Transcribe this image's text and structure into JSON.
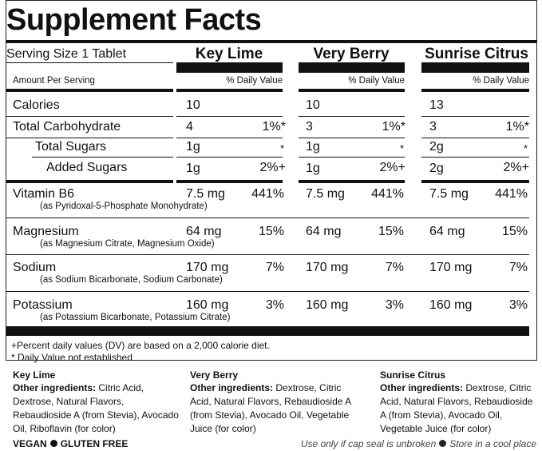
{
  "title": "Supplement Facts",
  "serving_size": "Serving Size 1 Tablet",
  "amount_per_serving": "Amount Per Serving",
  "daily_value_header": "% Daily Value",
  "columns": [
    "Key Lime",
    "Very Berry",
    "Sunrise Citrus"
  ],
  "rows": [
    {
      "name": "Calories",
      "sub": "",
      "values": [
        [
          "10",
          ""
        ],
        [
          "10",
          ""
        ],
        [
          "13",
          ""
        ]
      ]
    },
    {
      "name": "Total Carbohydrate",
      "sub": "",
      "values": [
        [
          "4",
          "1%*"
        ],
        [
          "3",
          "1%*"
        ],
        [
          "3",
          "1%*"
        ]
      ]
    },
    {
      "name": "Total Sugars",
      "sub": "",
      "values": [
        [
          "1g",
          "*"
        ],
        [
          "1g",
          "*"
        ],
        [
          "2g",
          "*"
        ]
      ]
    },
    {
      "name": "Added Sugars",
      "sub": "",
      "values": [
        [
          "1g",
          "2%+"
        ],
        [
          "1g",
          "2%+"
        ],
        [
          "2g",
          "2%+"
        ]
      ]
    },
    {
      "name": "Vitamin B6",
      "sub": "(as Pyridoxal-5-Phosphate Monohydrate)",
      "values": [
        [
          "7.5 mg",
          "441%"
        ],
        [
          "7.5 mg",
          "441%"
        ],
        [
          "7.5 mg",
          "441%"
        ]
      ]
    },
    {
      "name": "Magnesium",
      "sub": "(as Magnesium Citrate, Magnesium Oxide)",
      "values": [
        [
          "64 mg",
          "15%"
        ],
        [
          "64 mg",
          "15%"
        ],
        [
          "64 mg",
          "15%"
        ]
      ]
    },
    {
      "name": "Sodium",
      "sub": "(as Sodium Bicarbonate, Sodium Carbonate)",
      "values": [
        [
          "170 mg",
          "7%"
        ],
        [
          "170 mg",
          "7%"
        ],
        [
          "170 mg",
          "7%"
        ]
      ]
    },
    {
      "name": "Potassium",
      "sub": "(as Potassium Bicarbonate, Potassium Citrate)",
      "values": [
        [
          "160 mg",
          "3%"
        ],
        [
          "160 mg",
          "3%"
        ],
        [
          "160 mg",
          "3%"
        ]
      ]
    }
  ],
  "footnotes": [
    "+Percent daily values (DV) are based on a 2,000 calorie diet.",
    "* Daily Value not established"
  ],
  "ingredients": [
    {
      "flavor": "Key Lime",
      "label": "Other ingredients:",
      "text": "Citric Acid, Dextrose, Natural Flavors, Rebaudioside A (from Stevia), Avocado Oil, Riboflavin (for color)"
    },
    {
      "flavor": "Very Berry",
      "label": "Other ingredients:",
      "text": "Dextrose, Citric Acid, Natural Flavors, Rebaudioside A (from Stevia), Avocado Oil, Vegetable Juice (for color)"
    },
    {
      "flavor": "Sunrise Citrus",
      "label": "Other ingredients:",
      "text": "Dextrose, Citric Acid, Natural Flavors, Rebaudioside A (from Stevia), Avocado Oil, Vegetable Juice (for color)"
    }
  ],
  "claims": [
    "VEGAN",
    "GLUTEN FREE"
  ],
  "notices": [
    "Use only if cap seal is unbroken",
    "Store in a cool place"
  ]
}
